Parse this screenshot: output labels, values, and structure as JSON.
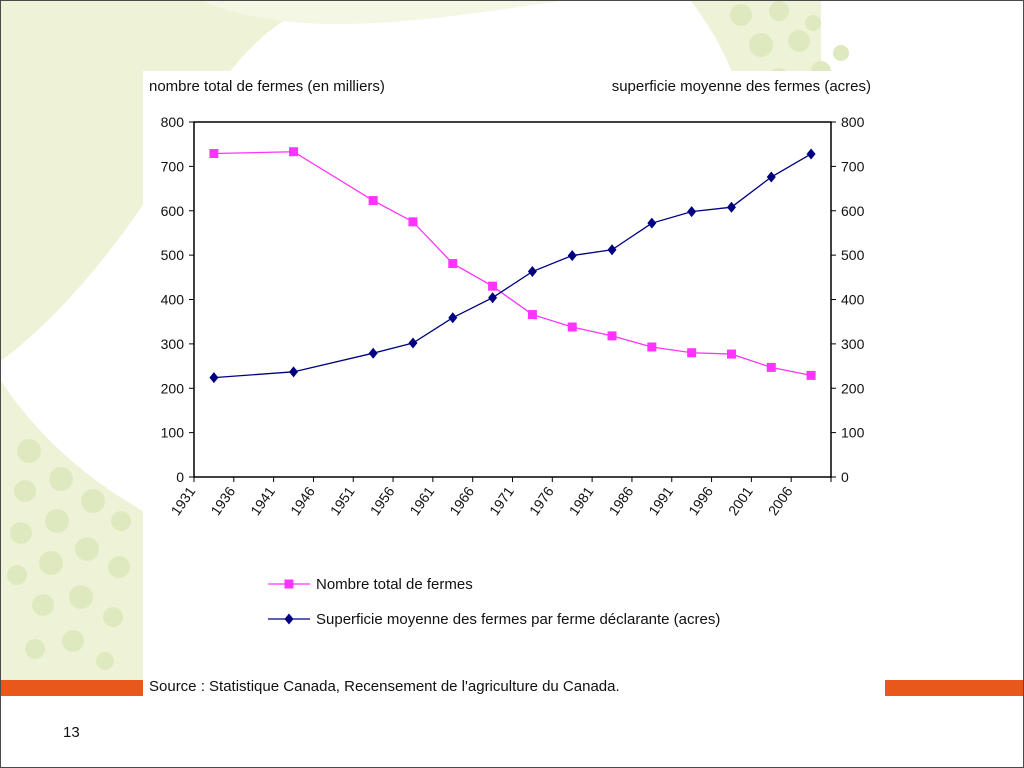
{
  "slide": {
    "page_number": "13",
    "colors": {
      "accent_orange": "#e8581b",
      "background_green": "#e9f0d0",
      "frame": "#4a4a4a"
    }
  },
  "chart_data": {
    "type": "line",
    "left_axis_label": "nombre total de fermes (en milliers)",
    "right_axis_label": "superficie moyenne des fermes (acres)",
    "x": [
      1931,
      1936,
      1941,
      1946,
      1951,
      1956,
      1961,
      1966,
      1971,
      1976,
      1981,
      1986,
      1991,
      1996,
      2001,
      2006
    ],
    "x_tick_labels": [
      "1931",
      "1936",
      "1941",
      "1946",
      "1951",
      "1956",
      "1961",
      "1966",
      "1971",
      "1976",
      "1981",
      "1986",
      "1991",
      "1996",
      "2001",
      "2006"
    ],
    "ylim_left": [
      0,
      800
    ],
    "ylim_right": [
      0,
      800
    ],
    "y_ticks": [
      "0",
      "100",
      "200",
      "300",
      "400",
      "500",
      "600",
      "700",
      "800"
    ],
    "y_tick_step": 100,
    "grid": false,
    "legend_position": "bottom",
    "series": [
      {
        "name": "Nombre total de fermes",
        "axis": "left",
        "color": "#ff33ff",
        "marker": "square",
        "x": [
          1931,
          1941,
          1951,
          1956,
          1961,
          1966,
          1971,
          1976,
          1981,
          1986,
          1991,
          1996,
          2001,
          2006
        ],
        "values": [
          729,
          733,
          623,
          575,
          481,
          430,
          366,
          338,
          318,
          293,
          280,
          277,
          247,
          229
        ]
      },
      {
        "name": "Superficie moyenne des fermes par ferme déclarante (acres)",
        "axis": "right",
        "color": "#000080",
        "marker": "diamond",
        "x": [
          1931,
          1941,
          1951,
          1956,
          1961,
          1966,
          1971,
          1976,
          1981,
          1986,
          1991,
          1996,
          2001,
          2006
        ],
        "values": [
          224,
          237,
          279,
          302,
          359,
          404,
          463,
          499,
          512,
          572,
          598,
          608,
          676,
          728
        ]
      }
    ],
    "source": "Source : Statistique Canada, Recensement de l'agriculture du Canada."
  }
}
